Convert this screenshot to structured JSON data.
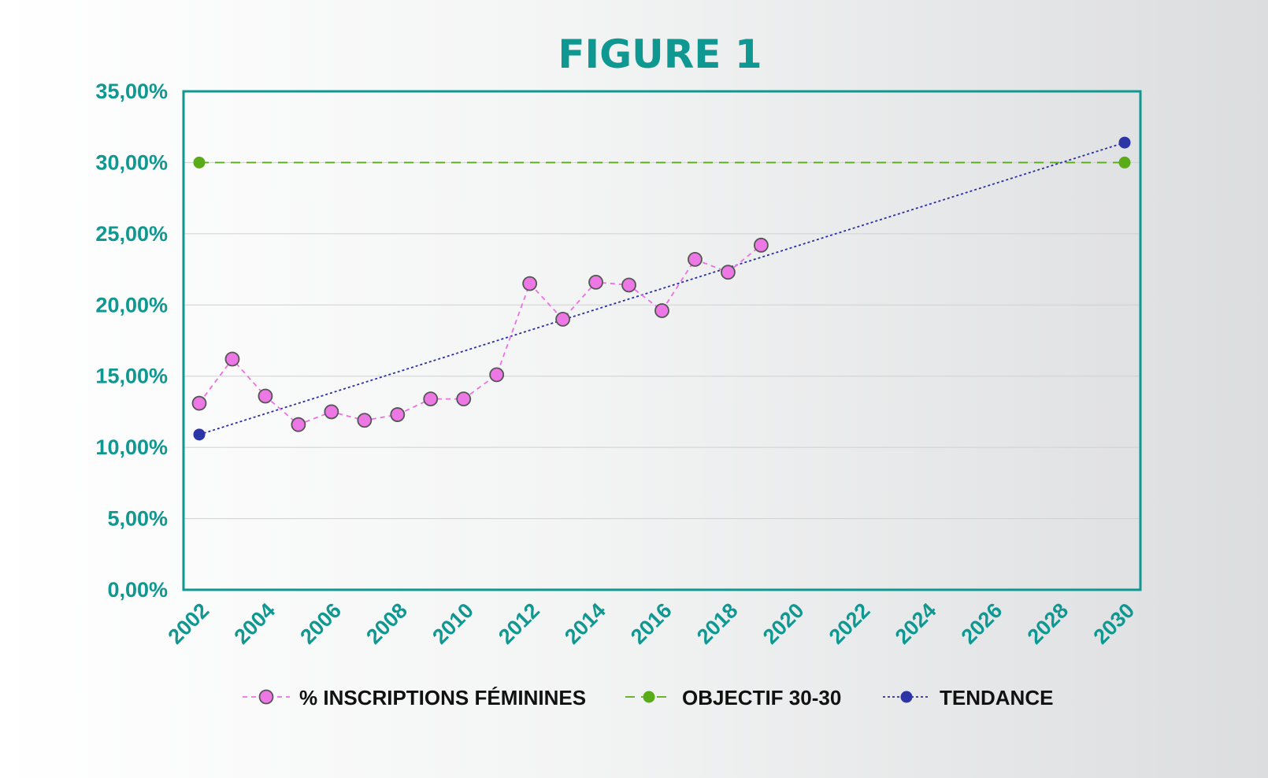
{
  "chart_data": {
    "type": "line",
    "title": "FIGURE 1",
    "xlabel": "",
    "ylabel": "",
    "xlim": [
      2002,
      2030
    ],
    "ylim": [
      0,
      35
    ],
    "x_ticks": [
      "2002",
      "2004",
      "2006",
      "2008",
      "2010",
      "2012",
      "2014",
      "2016",
      "2018",
      "2020",
      "2022",
      "2024",
      "2026",
      "2028",
      "2030"
    ],
    "y_ticks": [
      "0,00%",
      "5,00%",
      "10,00%",
      "15,00%",
      "20,00%",
      "25,00%",
      "30,00%",
      "35,00%"
    ],
    "grid": true,
    "legend_position": "bottom",
    "series": [
      {
        "name": "% INSCRIPTIONS FÉMININES",
        "color": "#ee6fe3",
        "marker_fill": "#ee77e6",
        "marker_stroke": "#555555",
        "line_style": "dashed",
        "x": [
          2002,
          2003,
          2004,
          2005,
          2006,
          2007,
          2008,
          2009,
          2010,
          2011,
          2012,
          2013,
          2014,
          2015,
          2016,
          2017,
          2018,
          2019
        ],
        "values": [
          13.1,
          16.2,
          13.6,
          11.6,
          12.5,
          11.9,
          12.3,
          13.4,
          13.4,
          15.1,
          21.5,
          19.0,
          21.6,
          21.4,
          19.6,
          23.2,
          22.3,
          24.2
        ]
      },
      {
        "name": "OBJECTIF 30-30",
        "color": "#5aab1a",
        "marker_fill": "#5aab1a",
        "line_style": "dashed",
        "x": [
          2002,
          2030
        ],
        "values": [
          30,
          30
        ]
      },
      {
        "name": "TENDANCE",
        "color": "#2b2fa3",
        "marker_fill": "#2b35a5",
        "line_style": "dotted",
        "x": [
          2002,
          2030
        ],
        "values": [
          10.9,
          31.4
        ]
      }
    ],
    "colors": {
      "axis": "#0e9891",
      "gridline": "#cfd0d1",
      "title": "#0e9891"
    }
  }
}
